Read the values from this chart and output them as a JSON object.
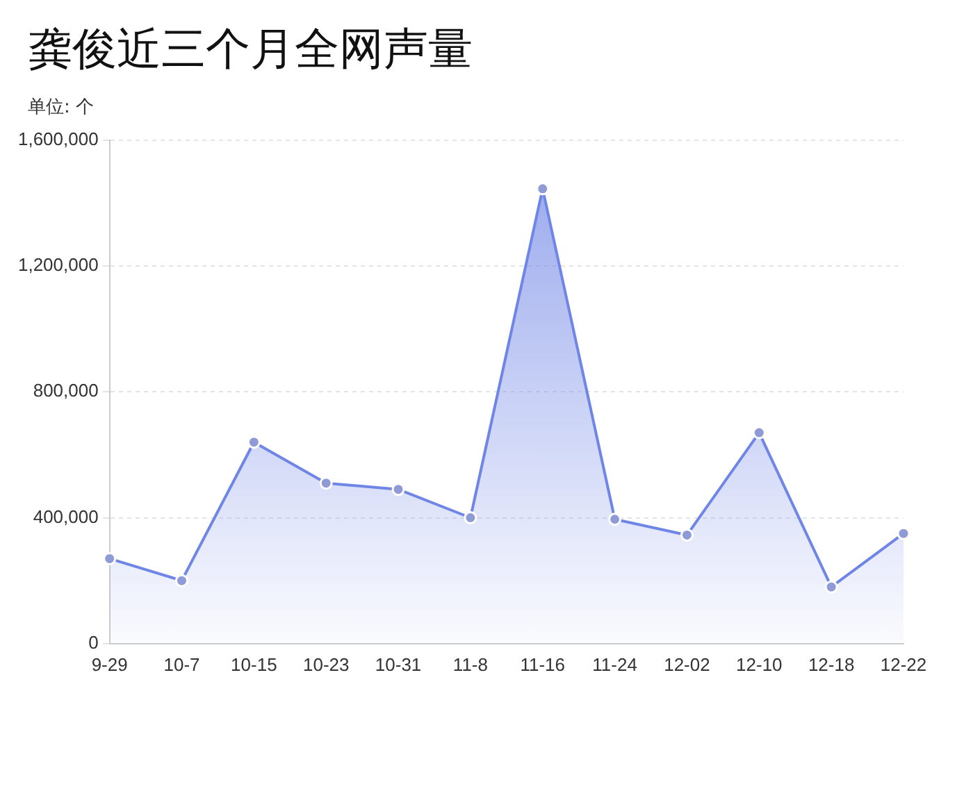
{
  "chart_data": {
    "type": "area",
    "title": "龚俊近三个月全网声量",
    "subtitle": "单位: 个",
    "categories": [
      "9-29",
      "10-7",
      "10-15",
      "10-23",
      "10-31",
      "11-8",
      "11-16",
      "11-24",
      "12-02",
      "12-10",
      "12-18",
      "12-22"
    ],
    "series": [
      {
        "color": "#7086e6",
        "values": [
          270000,
          200000,
          640000,
          510000,
          490000,
          400000,
          1445000,
          395000,
          345000,
          670000,
          180000,
          350000
        ]
      }
    ],
    "ylim": [
      0,
      1600000
    ],
    "yticks": [
      {
        "value": 0,
        "label": "0"
      },
      {
        "value": 400000,
        "label": "400,000"
      },
      {
        "value": 800000,
        "label": "800,000"
      },
      {
        "value": 1200000,
        "label": "1,200,000"
      },
      {
        "value": 1600000,
        "label": "1,600,000"
      }
    ],
    "grid": "y",
    "marker": "circle",
    "legend": false
  }
}
